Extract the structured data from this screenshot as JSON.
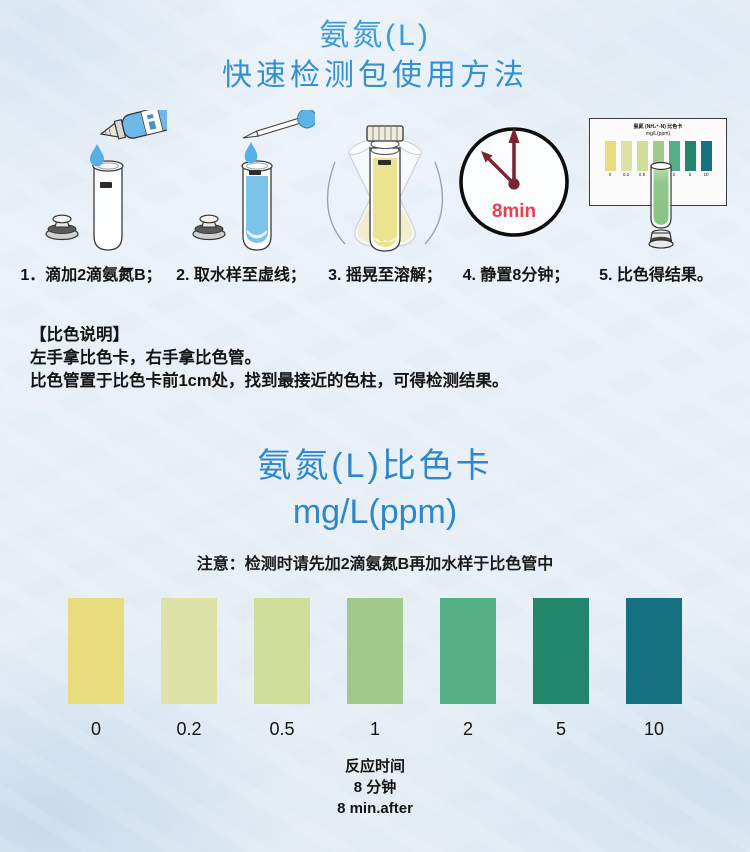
{
  "page": {
    "title_line1": "氨氮(L)",
    "title_line2": "快速检测包使用方法"
  },
  "steps": [
    {
      "label": "1．滴加2滴氨氮B；"
    },
    {
      "label": "2. 取水样至虚线；"
    },
    {
      "label": "3. 摇晃至溶解；"
    },
    {
      "label": "4. 静置8分钟；"
    },
    {
      "label": "5. 比色得结果。"
    }
  ],
  "clock": {
    "time_text": "8min",
    "hand_color": "#7b2433",
    "time_color": "#e8404e"
  },
  "mini_card": {
    "title_line1": "氨氮 (NH₄⁺-N) 比色卡",
    "title_line2": "mg/L(ppm)"
  },
  "instructions": {
    "heading": "【比色说明】",
    "line1": "左手拿比色卡，右手拿比色管。",
    "line2": "比色管置于比色卡前1cm处，找到最接近的色柱，可得检测结果。"
  },
  "color_card": {
    "title_line1": "氨氮(L)比色卡",
    "title_line2": "mg/L(ppm)",
    "note": "注意：检测时请先加2滴氨氮B再加水样于比色管中",
    "swatches": [
      {
        "value": "0",
        "color": "#e8dd7d"
      },
      {
        "value": "0.2",
        "color": "#dde3a6"
      },
      {
        "value": "0.5",
        "color": "#cfdf99"
      },
      {
        "value": "1",
        "color": "#a1c98c"
      },
      {
        "value": "2",
        "color": "#55af85"
      },
      {
        "value": "5",
        "color": "#22876a"
      },
      {
        "value": "10",
        "color": "#15717f"
      }
    ]
  },
  "footer": {
    "line1": "反应时间",
    "line2": "8 分钟",
    "line3": "8 min.after"
  }
}
